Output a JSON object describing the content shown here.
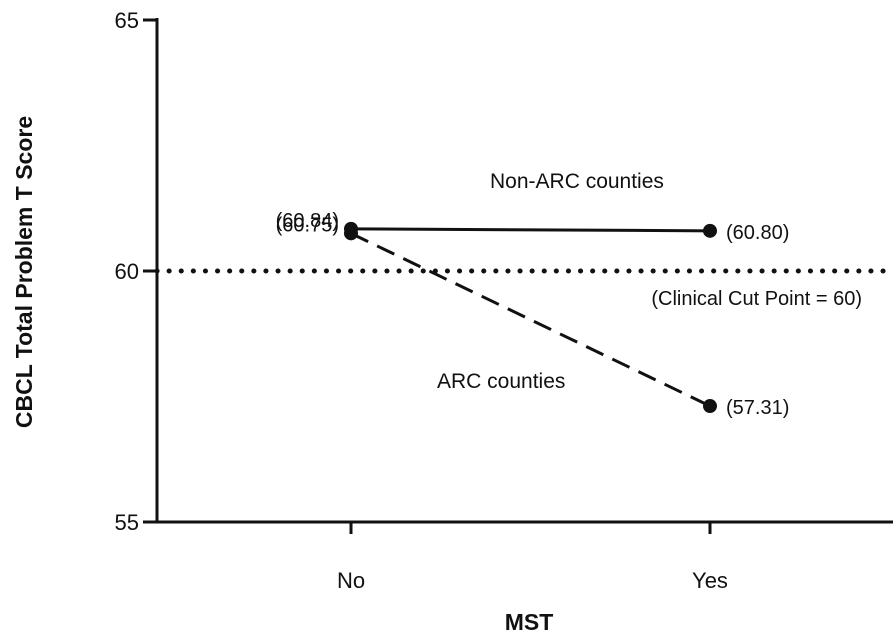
{
  "chart_data": {
    "type": "line",
    "title": "",
    "xlabel": "MST",
    "ylabel": "CBCL Total Problem T Score",
    "categories": [
      "No",
      "Yes"
    ],
    "ylim": [
      55,
      65
    ],
    "yticks": [
      "55",
      "60",
      "65"
    ],
    "grid": false,
    "series": [
      {
        "name": "Non-ARC counties",
        "values": [
          60.84,
          60.8
        ],
        "labels": [
          "(60.84)",
          "(60.80)"
        ],
        "line_style": "solid"
      },
      {
        "name": "ARC counties",
        "values": [
          60.75,
          57.31
        ],
        "labels": [
          "(60.75)",
          "(57.31)"
        ],
        "line_style": "dashed"
      }
    ],
    "reference_line": {
      "value": 60,
      "label": "(Clinical Cut Point = 60)",
      "line_style": "dotted"
    }
  }
}
